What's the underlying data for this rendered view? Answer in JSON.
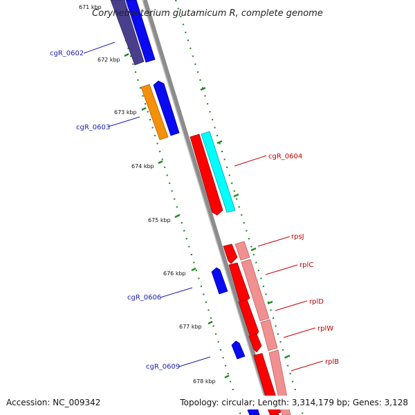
{
  "title": "Corynebacterium glutamicum R, complete genome",
  "footer": {
    "accession": "Accession: NC_009342",
    "topology": "Topology: circular; Length: 3,314,179 bp; Genes: 3,128"
  },
  "ticks": [
    {
      "label": "671 kbp"
    },
    {
      "label": "672 kbp"
    },
    {
      "label": "673 kbp"
    },
    {
      "label": "674 kbp"
    },
    {
      "label": "675 kbp"
    },
    {
      "label": "676 kbp"
    },
    {
      "label": "677 kbp"
    },
    {
      "label": "678 kbp"
    }
  ],
  "gene_labels": [
    {
      "label": "cgR_0602"
    },
    {
      "label": "cgR_0603"
    },
    {
      "label": "cgR_0604"
    },
    {
      "label": "rpsJ"
    },
    {
      "label": "rplC"
    },
    {
      "label": "rplD"
    },
    {
      "label": "rplW"
    },
    {
      "label": "rplB"
    },
    {
      "label": "cgR_0606"
    },
    {
      "label": "cgR_0609"
    }
  ],
  "colors": {
    "backbone": "#8c8c8c",
    "tick_dots": "#1f8a1f",
    "navy_feature": "#4a3f8c",
    "blue_feature": "#0a0af0",
    "orange_feature": "#f5900a",
    "red_feature": "#ff0000",
    "cyan_feature": "#00ffff",
    "pink_feature": "#f09090",
    "label_blue": "#1a1ab0",
    "label_red": "#c00000"
  }
}
